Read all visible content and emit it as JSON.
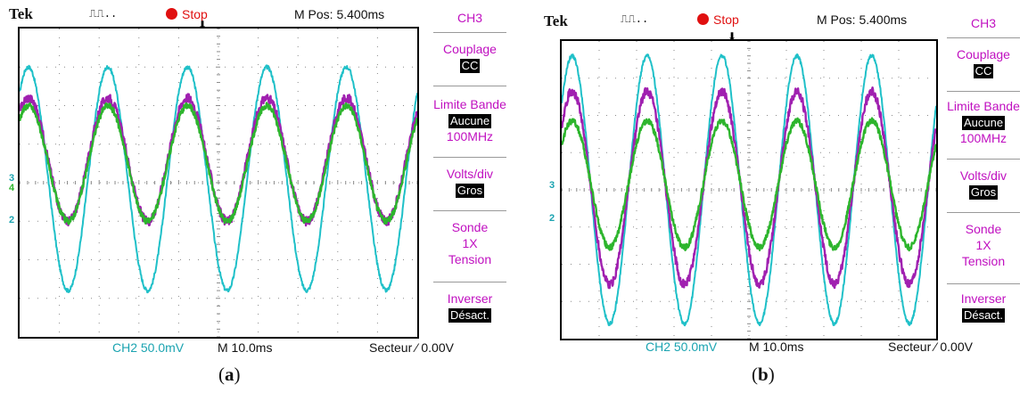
{
  "scopes": [
    {
      "id": "a",
      "brand": "Tek",
      "trigger_glyph": "⎍⎍..",
      "status": "Stop",
      "mpos": "M Pos: 5.400ms",
      "markers": {
        "ch3": "3",
        "ch4": "4",
        "ch2": "2"
      },
      "menu": {
        "channel": "CH3",
        "coupling_label": "Couplage",
        "coupling_value": "CC",
        "bandwidth_label": "Limite Bande",
        "bandwidth_value": "Aucune",
        "bandwidth_freq": "100MHz",
        "voltsdiv_label": "Volts/div",
        "voltsdiv_value": "Gros",
        "probe_label": "Sonde",
        "probe_x": "1X",
        "probe_mode": "Tension",
        "invert_label": "Inverser",
        "invert_value": "Désact."
      },
      "bottom": {
        "ch_scale": "CH2  50.0mV",
        "timebase": "M 10.0ms",
        "trigger": "Secteur ⁄ 0.00V"
      },
      "caption_letter": "a"
    },
    {
      "id": "b",
      "brand": "Tek",
      "trigger_glyph": "⎍⎍..",
      "status": "Stop",
      "mpos": "M Pos: 5.400ms",
      "markers": {
        "ch3": "3",
        "ch4": "",
        "ch2": "2"
      },
      "menu": {
        "channel": "CH3",
        "coupling_label": "Couplage",
        "coupling_value": "CC",
        "bandwidth_label": "Limite Bande",
        "bandwidth_value": "Aucune",
        "bandwidth_freq": "100MHz",
        "voltsdiv_label": "Volts/div",
        "voltsdiv_value": "Gros",
        "probe_label": "Sonde",
        "probe_x": "1X",
        "probe_mode": "Tension",
        "invert_label": "Inverser",
        "invert_value": "Désact."
      },
      "bottom": {
        "ch_scale": "CH2  50.0mV",
        "timebase": "M 10.0ms",
        "trigger": "Secteur ⁄ 0.00V"
      },
      "caption_letter": "b"
    }
  ],
  "chart_data": [
    {
      "type": "line",
      "grid": true,
      "x_divisions": 10,
      "y_divisions": 8,
      "cycles": 5,
      "phase": 0.05,
      "ylim": [
        -4,
        4
      ],
      "series": [
        {
          "color": "#1fc0c8",
          "offset_div": 0.1,
          "amplitude_div": 2.9,
          "noise": 0.05
        },
        {
          "color": "#a020b0",
          "offset_div": 0.6,
          "amplitude_div": 1.6,
          "noise": 0.12
        },
        {
          "color": "#2db52d",
          "offset_div": 0.5,
          "amplitude_div": 1.5,
          "noise": 0.08
        }
      ]
    },
    {
      "type": "line",
      "grid": true,
      "x_divisions": 10,
      "y_divisions": 8,
      "cycles": 5,
      "phase": 0.02,
      "ylim": [
        -4,
        4
      ],
      "series": [
        {
          "color": "#1fc0c8",
          "offset_div": 0.0,
          "amplitude_div": 3.6,
          "noise": 0.05
        },
        {
          "color": "#a020b0",
          "offset_div": 0.05,
          "amplitude_div": 2.6,
          "noise": 0.12
        },
        {
          "color": "#2db52d",
          "offset_div": 0.15,
          "amplitude_div": 1.7,
          "noise": 0.08
        }
      ]
    }
  ]
}
